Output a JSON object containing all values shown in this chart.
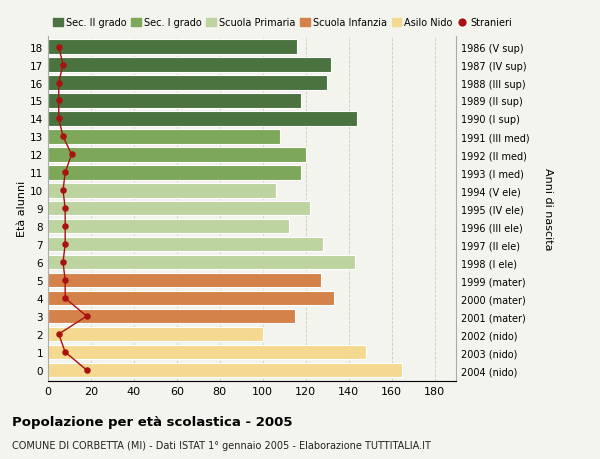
{
  "ages": [
    18,
    17,
    16,
    15,
    14,
    13,
    12,
    11,
    10,
    9,
    8,
    7,
    6,
    5,
    4,
    3,
    2,
    1,
    0
  ],
  "years": [
    "1986 (V sup)",
    "1987 (IV sup)",
    "1988 (III sup)",
    "1989 (II sup)",
    "1990 (I sup)",
    "1991 (III med)",
    "1992 (II med)",
    "1993 (I med)",
    "1994 (V ele)",
    "1995 (IV ele)",
    "1996 (III ele)",
    "1997 (II ele)",
    "1998 (I ele)",
    "1999 (mater)",
    "2000 (mater)",
    "2001 (mater)",
    "2002 (nido)",
    "2003 (nido)",
    "2004 (nido)"
  ],
  "bar_values": [
    116,
    132,
    130,
    118,
    144,
    108,
    120,
    118,
    106,
    122,
    112,
    128,
    143,
    127,
    133,
    115,
    100,
    148,
    165
  ],
  "bar_colors": [
    "#4a7340",
    "#4a7340",
    "#4a7340",
    "#4a7340",
    "#4a7340",
    "#7da85a",
    "#7da85a",
    "#7da85a",
    "#bdd4a0",
    "#bdd4a0",
    "#bdd4a0",
    "#bdd4a0",
    "#bdd4a0",
    "#d4824a",
    "#d4824a",
    "#d4824a",
    "#f5d990",
    "#f5d990",
    "#f5d990"
  ],
  "stranieri_values": [
    5,
    7,
    5,
    5,
    5,
    7,
    11,
    8,
    7,
    8,
    8,
    8,
    7,
    8,
    8,
    18,
    5,
    8,
    18
  ],
  "legend_labels": [
    "Sec. II grado",
    "Sec. I grado",
    "Scuola Primaria",
    "Scuola Infanzia",
    "Asilo Nido",
    "Stranieri"
  ],
  "legend_colors": [
    "#4a7340",
    "#7da85a",
    "#bdd4a0",
    "#d4824a",
    "#f5d990",
    "#aa1111"
  ],
  "ylabel_left": "Età alunni",
  "ylabel_right": "Anni di nascita",
  "title": "Popolazione per età scolastica - 2005",
  "subtitle": "COMUNE DI CORBETTA (MI) - Dati ISTAT 1° gennaio 2005 - Elaborazione TUTTITALIA.IT",
  "xlim": [
    0,
    190
  ],
  "xticks": [
    0,
    20,
    40,
    60,
    80,
    100,
    120,
    140,
    160,
    180
  ],
  "background_color": "#f4f4ee",
  "bar_height": 0.8,
  "grid_color": "#ccccbb"
}
